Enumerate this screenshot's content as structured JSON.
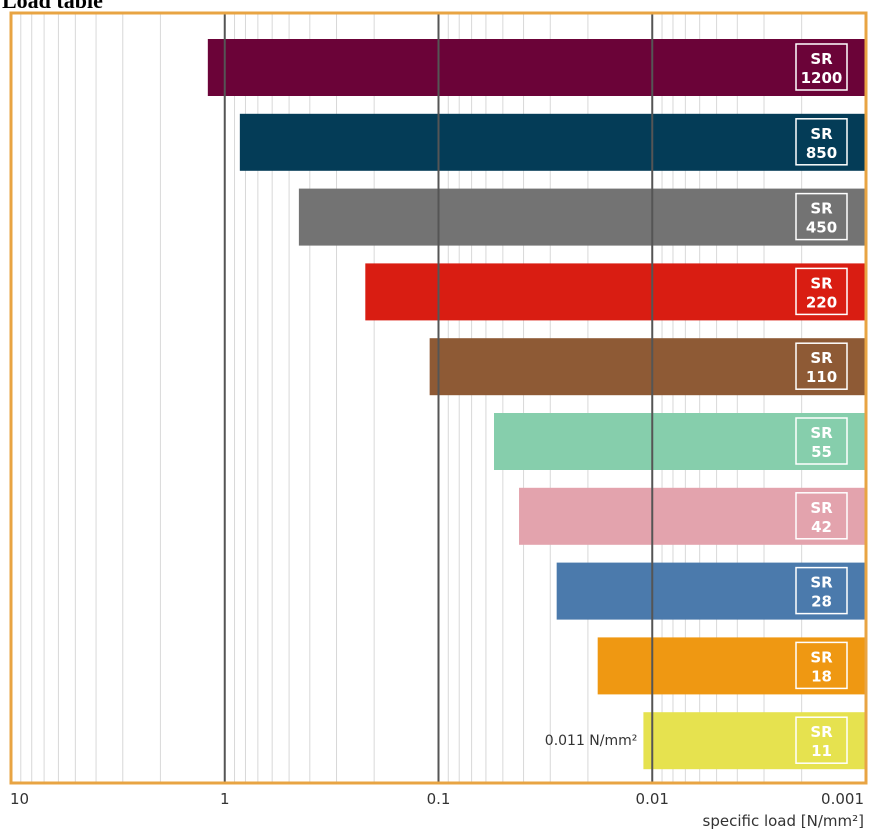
{
  "page": {
    "title": "Load table"
  },
  "chart_data": {
    "type": "bar",
    "orientation": "horizontal",
    "title": "",
    "xlabel": "specific load [N/mm²]",
    "ylabel": "",
    "x_scale": "log",
    "x_direction": "reversed",
    "xlim": [
      10,
      0.001
    ],
    "x_ticks": [
      {
        "value": 10,
        "label": "10"
      },
      {
        "value": 1,
        "label": "1"
      },
      {
        "value": 0.1,
        "label": "0.1"
      },
      {
        "value": 0.01,
        "label": "0.01"
      },
      {
        "value": 0.001,
        "label": "0.001"
      }
    ],
    "grid": true,
    "categories": [
      {
        "prefix": "SR",
        "number": "1200"
      },
      {
        "prefix": "SR",
        "number": "850"
      },
      {
        "prefix": "SR",
        "number": "450"
      },
      {
        "prefix": "SR",
        "number": "220"
      },
      {
        "prefix": "SR",
        "number": "110"
      },
      {
        "prefix": "SR",
        "number": "55"
      },
      {
        "prefix": "SR",
        "number": "42"
      },
      {
        "prefix": "SR",
        "number": "28"
      },
      {
        "prefix": "SR",
        "number": "18"
      },
      {
        "prefix": "SR",
        "number": "11"
      }
    ],
    "values": [
      1.2,
      0.85,
      0.45,
      0.22,
      0.11,
      0.055,
      0.042,
      0.028,
      0.018,
      0.011
    ],
    "colors": [
      "#6b0338",
      "#043c57",
      "#737373",
      "#d91d12",
      "#8e5a35",
      "#86ceac",
      "#e3a3ad",
      "#4b7aac",
      "#ef9812",
      "#e6e24f"
    ],
    "annotations": [
      {
        "category_index": 9,
        "text": "0.011 N/mm²"
      }
    ],
    "frame_color": "#e8a443"
  }
}
